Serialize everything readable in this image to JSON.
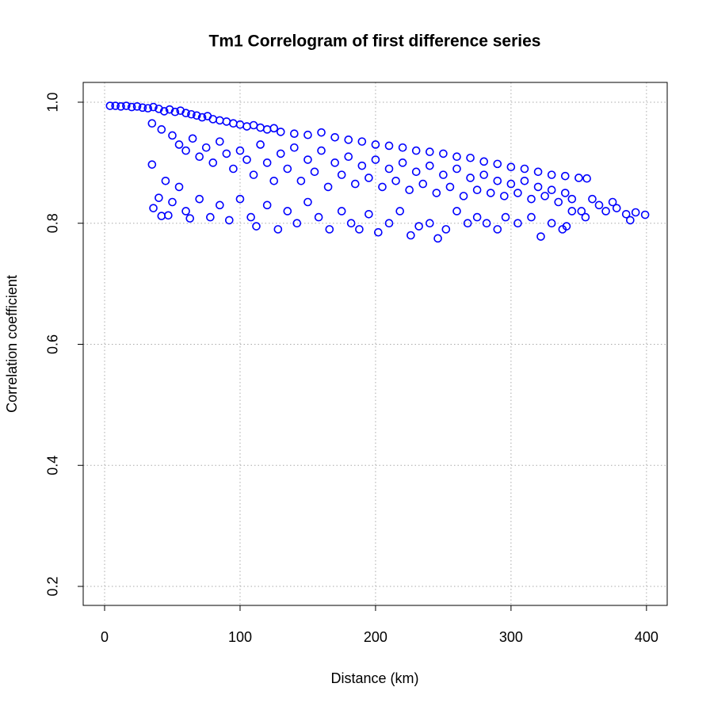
{
  "chart_data": {
    "type": "scatter",
    "title": "Tm1 Correlogram of first difference series",
    "x_label": "Distance (km)",
    "y_label": "Correlation coefficient",
    "xlim": [
      -15.8,
      415.3
    ],
    "ylim": [
      0.1686,
      1.0327
    ],
    "xticks": [
      0,
      100,
      200,
      300,
      400
    ],
    "yticks": [
      0.2,
      0.4,
      0.6,
      0.8,
      {
        "value": 1,
        "label": "1.0"
      }
    ],
    "grid": true,
    "series": [
      {
        "color": "#0000ff",
        "x": [
          4,
          8,
          12,
          16,
          20,
          24,
          28,
          32,
          36,
          40,
          44,
          48,
          52,
          56,
          60,
          64,
          68,
          72,
          76,
          80,
          85,
          90,
          95,
          100,
          105,
          110,
          115,
          120,
          125,
          130,
          140,
          150,
          160,
          170,
          180,
          190,
          200,
          210,
          220,
          230,
          240,
          250,
          260,
          270,
          280,
          290,
          300,
          310,
          320,
          330,
          340,
          350,
          356,
          35,
          42,
          50,
          55,
          60,
          65,
          70,
          75,
          80,
          85,
          90,
          95,
          100,
          105,
          110,
          115,
          120,
          125,
          130,
          135,
          140,
          145,
          150,
          155,
          160,
          165,
          170,
          175,
          180,
          185,
          190,
          195,
          200,
          205,
          210,
          215,
          220,
          225,
          230,
          235,
          240,
          245,
          250,
          255,
          260,
          265,
          270,
          275,
          280,
          285,
          290,
          295,
          300,
          305,
          310,
          315,
          320,
          325,
          330,
          335,
          340,
          345,
          35,
          36,
          40,
          42,
          45,
          47,
          50,
          55,
          60,
          63,
          70,
          78,
          85,
          92,
          100,
          108,
          112,
          120,
          128,
          135,
          142,
          150,
          158,
          166,
          175,
          182,
          188,
          195,
          202,
          210,
          218,
          226,
          232,
          240,
          246,
          252,
          260,
          268,
          275,
          282,
          290,
          296,
          305,
          315,
          322,
          330,
          338,
          345,
          352,
          360,
          365,
          370,
          375,
          378,
          385,
          388,
          392,
          399,
          355,
          341
        ],
        "y": [
          0.994,
          0.994,
          0.993,
          0.994,
          0.992,
          0.993,
          0.991,
          0.99,
          0.992,
          0.989,
          0.985,
          0.988,
          0.984,
          0.986,
          0.982,
          0.98,
          0.978,
          0.975,
          0.977,
          0.972,
          0.97,
          0.968,
          0.965,
          0.963,
          0.96,
          0.962,
          0.958,
          0.955,
          0.957,
          0.951,
          0.948,
          0.946,
          0.95,
          0.942,
          0.938,
          0.935,
          0.93,
          0.928,
          0.925,
          0.92,
          0.918,
          0.915,
          0.91,
          0.908,
          0.902,
          0.898,
          0.893,
          0.89,
          0.885,
          0.88,
          0.878,
          0.875,
          0.874,
          0.965,
          0.955,
          0.945,
          0.93,
          0.92,
          0.94,
          0.91,
          0.925,
          0.9,
          0.935,
          0.915,
          0.89,
          0.92,
          0.905,
          0.88,
          0.93,
          0.9,
          0.87,
          0.915,
          0.89,
          0.925,
          0.87,
          0.905,
          0.885,
          0.92,
          0.86,
          0.9,
          0.88,
          0.91,
          0.865,
          0.895,
          0.875,
          0.905,
          0.86,
          0.89,
          0.87,
          0.9,
          0.855,
          0.885,
          0.865,
          0.895,
          0.85,
          0.88,
          0.86,
          0.89,
          0.845,
          0.875,
          0.855,
          0.88,
          0.85,
          0.87,
          0.845,
          0.865,
          0.85,
          0.87,
          0.84,
          0.86,
          0.845,
          0.855,
          0.835,
          0.85,
          0.84,
          0.897,
          0.825,
          0.842,
          0.812,
          0.87,
          0.813,
          0.835,
          0.86,
          0.82,
          0.808,
          0.84,
          0.81,
          0.83,
          0.805,
          0.84,
          0.81,
          0.795,
          0.83,
          0.79,
          0.82,
          0.8,
          0.835,
          0.81,
          0.79,
          0.82,
          0.8,
          0.79,
          0.815,
          0.785,
          0.8,
          0.82,
          0.78,
          0.795,
          0.8,
          0.775,
          0.79,
          0.82,
          0.8,
          0.81,
          0.8,
          0.79,
          0.81,
          0.8,
          0.81,
          0.778,
          0.8,
          0.79,
          0.82,
          0.82,
          0.84,
          0.83,
          0.82,
          0.835,
          0.825,
          0.815,
          0.805,
          0.818,
          0.814,
          0.81,
          0.795
        ]
      }
    ]
  }
}
